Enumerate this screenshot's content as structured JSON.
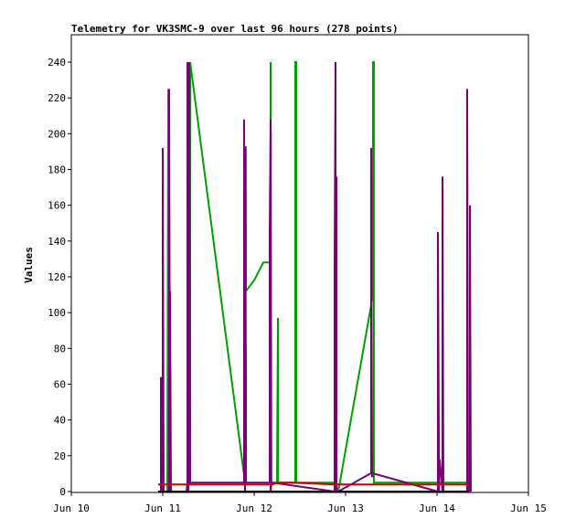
{
  "chart_data": {
    "type": "line",
    "title": "Telemetry for VK3SMC-9 over last 96 hours (278 points)",
    "xlabel": "",
    "ylabel": "Values",
    "xlim": [
      0,
      5
    ],
    "ylim": [
      0,
      255
    ],
    "grid": false,
    "legend": "none",
    "x_tick_labels": [
      "Jun 10",
      "Jun 11",
      "Jun 12",
      "Jun 13",
      "Jun 14",
      "Jun 15"
    ],
    "y_ticks": [
      0,
      20,
      40,
      60,
      80,
      100,
      120,
      140,
      160,
      180,
      200,
      220,
      240
    ],
    "series": [
      {
        "color": "#00a000",
        "x": [
          0.95,
          1.0,
          1.05,
          1.06,
          1.07,
          1.1,
          1.1,
          1.28,
          1.29,
          1.29,
          1.3,
          1.3,
          1.3,
          1.9,
          1.9,
          1.91,
          1.91,
          2.0,
          2.1,
          2.1,
          2.18,
          2.18,
          2.18,
          2.19,
          2.2,
          2.25,
          2.26,
          2.26,
          2.45,
          2.45,
          2.46,
          2.46,
          2.9,
          2.9,
          2.91,
          2.92,
          3.3,
          3.3,
          3.31,
          3.31,
          4.0,
          4.1,
          4.35,
          4.35
        ],
        "y": [
          0,
          0,
          0,
          225,
          0,
          0,
          0,
          0,
          240,
          5,
          5,
          240,
          240,
          5,
          5,
          193,
          112,
          118,
          128,
          128,
          128,
          240,
          240,
          5,
          5,
          5,
          97,
          5,
          5,
          240,
          240,
          5,
          5,
          5,
          0,
          0,
          110,
          240,
          240,
          5,
          5,
          5,
          5,
          5
        ]
      },
      {
        "color": "#7a007a",
        "x": [
          0.95,
          0.98,
          0.98,
          1.0,
          1.0,
          1.01,
          1.07,
          1.07,
          1.08,
          1.08,
          1.09,
          1.1,
          1.26,
          1.27,
          1.27,
          1.28,
          1.28,
          1.29,
          1.3,
          1.3,
          1.88,
          1.89,
          1.89,
          1.9,
          1.9,
          1.91,
          1.91,
          2.17,
          2.17,
          2.18,
          2.18,
          2.19,
          2.2,
          2.88,
          2.88,
          2.89,
          2.89,
          2.9,
          2.9,
          2.91,
          2.92,
          3.27,
          3.28,
          3.28,
          3.29,
          3.3,
          3.31,
          4.01,
          4.01,
          4.02,
          4.02,
          4.03,
          4.06,
          4.06,
          4.07,
          4.33,
          4.33,
          4.34,
          4.36,
          4.36,
          4.37
        ],
        "y": [
          0,
          0,
          64,
          0,
          192,
          0,
          0,
          225,
          0,
          112,
          0,
          0,
          0,
          5,
          240,
          0,
          97,
          240,
          5,
          5,
          5,
          5,
          208,
          0,
          192,
          63,
          5,
          5,
          144,
          208,
          0,
          5,
          5,
          0,
          126,
          240,
          0,
          176,
          0,
          0,
          0,
          10,
          10,
          192,
          8,
          10,
          10,
          0,
          145,
          27,
          0,
          18,
          0,
          176,
          0,
          0,
          225,
          0,
          0,
          160,
          0
        ]
      },
      {
        "color": "#cc0000",
        "x": [
          0.95,
          1.3,
          1.31,
          1.9,
          2.2,
          2.25,
          2.4,
          2.9,
          3.3,
          4.0,
          4.35
        ],
        "y": [
          4,
          4,
          4,
          4,
          4,
          5,
          5,
          4,
          4,
          4,
          4
        ]
      },
      {
        "color": "#000000",
        "x": [
          0.95,
          4.35
        ],
        "y": [
          0,
          0
        ]
      }
    ]
  }
}
